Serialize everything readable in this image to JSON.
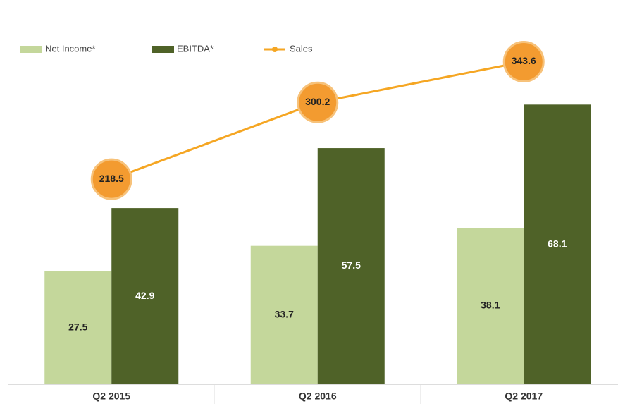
{
  "chart_data": {
    "type": "bar",
    "categories": [
      "Q2 2015",
      "Q2 2016",
      "Q2 2017"
    ],
    "series": [
      {
        "name": "Net Income*",
        "color": "#c4d79b",
        "values": [
          27.5,
          33.7,
          38.1
        ]
      },
      {
        "name": "EBITDA*",
        "color": "#4f6228",
        "values": [
          42.9,
          57.5,
          68.1
        ]
      },
      {
        "name": "Sales",
        "color": "#f5a623",
        "type": "line",
        "axis": "y2",
        "values": [
          218.5,
          300.2,
          343.6
        ]
      }
    ],
    "ylim": [
      0,
      80
    ],
    "y2lim": [
      0,
      350
    ],
    "grid": false,
    "legend": "top-left"
  }
}
